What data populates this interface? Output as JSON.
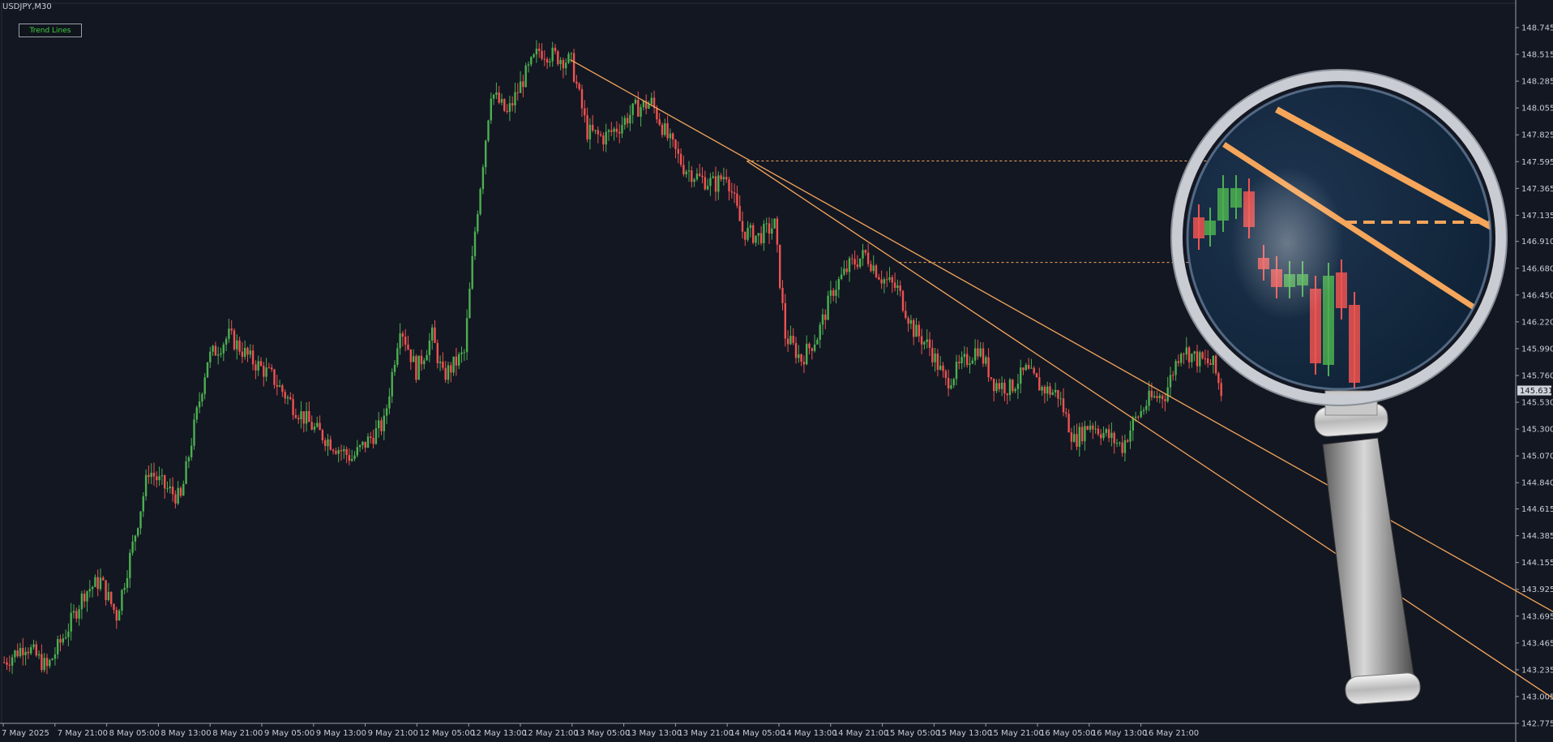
{
  "header": {
    "symbol": "USDJPY,M30"
  },
  "toolbar": {
    "trend_lines_label": "Trend Lines"
  },
  "colors": {
    "background": "#131722",
    "bull": "#4caf50",
    "bear": "#ef5350",
    "trend": "#f5a65b",
    "axis": "#9aa0a8"
  },
  "chart_data": {
    "type": "candlestick",
    "symbol": "USDJPY",
    "timeframe": "M30",
    "ylim": [
      142.775,
      148.745
    ],
    "current_price": "145.631",
    "y_ticks": [
      "148.745",
      "148.515",
      "148.285",
      "148.055",
      "147.825",
      "147.595",
      "147.365",
      "147.135",
      "146.910",
      "146.680",
      "146.450",
      "146.220",
      "145.990",
      "145.760",
      "145.530",
      "145.300",
      "145.070",
      "144.840",
      "144.615",
      "144.385",
      "144.155",
      "143.925",
      "143.695",
      "143.465",
      "143.235",
      "143.005",
      "142.775"
    ],
    "x_ticks": [
      "7 May 2025",
      "7 May 21:00",
      "8 May 05:00",
      "8 May 13:00",
      "8 May 21:00",
      "9 May 05:00",
      "9 May 13:00",
      "9 May 21:00",
      "12 May 05:00",
      "12 May 13:00",
      "12 May 21:00",
      "13 May 05:00",
      "13 May 13:00",
      "13 May 21:00",
      "14 May 05:00",
      "14 May 13:00",
      "14 May 21:00",
      "15 May 05:00",
      "15 May 13:00",
      "15 May 21:00",
      "16 May 05:00",
      "16 May 13:00",
      "16 May 21:00"
    ],
    "close_path": [
      [
        0,
        143.3
      ],
      [
        8,
        143.45
      ],
      [
        16,
        143.25
      ],
      [
        24,
        143.6
      ],
      [
        30,
        143.9
      ],
      [
        36,
        144.0
      ],
      [
        42,
        143.7
      ],
      [
        48,
        144.3
      ],
      [
        54,
        144.95
      ],
      [
        60,
        144.8
      ],
      [
        66,
        144.7
      ],
      [
        70,
        145.2
      ],
      [
        76,
        145.9
      ],
      [
        84,
        146.1
      ],
      [
        92,
        145.9
      ],
      [
        100,
        145.75
      ],
      [
        108,
        145.5
      ],
      [
        116,
        145.3
      ],
      [
        124,
        145.15
      ],
      [
        130,
        145.05
      ],
      [
        136,
        145.2
      ],
      [
        142,
        145.35
      ],
      [
        148,
        146.2
      ],
      [
        154,
        145.8
      ],
      [
        160,
        146.1
      ],
      [
        164,
        145.75
      ],
      [
        172,
        145.95
      ],
      [
        176,
        147.0
      ],
      [
        182,
        148.2
      ],
      [
        188,
        148.0
      ],
      [
        194,
        148.3
      ],
      [
        200,
        148.55
      ],
      [
        206,
        148.5
      ],
      [
        212,
        148.45
      ],
      [
        218,
        147.85
      ],
      [
        224,
        147.8
      ],
      [
        230,
        147.9
      ],
      [
        236,
        148.05
      ],
      [
        242,
        148.1
      ],
      [
        248,
        147.8
      ],
      [
        254,
        147.55
      ],
      [
        260,
        147.45
      ],
      [
        266,
        147.4
      ],
      [
        270,
        147.5
      ],
      [
        276,
        147.0
      ],
      [
        282,
        146.95
      ],
      [
        288,
        147.05
      ],
      [
        292,
        146.1
      ],
      [
        298,
        145.9
      ],
      [
        304,
        146.1
      ],
      [
        310,
        146.5
      ],
      [
        316,
        146.7
      ],
      [
        322,
        146.8
      ],
      [
        328,
        146.6
      ],
      [
        334,
        146.5
      ],
      [
        340,
        146.15
      ],
      [
        346,
        146.0
      ],
      [
        352,
        145.7
      ],
      [
        358,
        145.85
      ],
      [
        364,
        146.0
      ],
      [
        370,
        145.7
      ],
      [
        376,
        145.65
      ],
      [
        382,
        145.8
      ],
      [
        388,
        145.65
      ],
      [
        394,
        145.6
      ],
      [
        400,
        145.2
      ],
      [
        406,
        145.35
      ],
      [
        412,
        145.25
      ],
      [
        418,
        145.15
      ],
      [
        422,
        145.35
      ],
      [
        428,
        145.55
      ],
      [
        434,
        145.6
      ],
      [
        440,
        146.0
      ],
      [
        446,
        145.9
      ],
      [
        452,
        145.85
      ],
      [
        455,
        145.62
      ]
    ],
    "trend_lines": [
      {
        "from": [
          212,
          148.47
        ],
        "to": [
          582,
          143.7
        ]
      },
      {
        "from": [
          278,
          147.6
        ],
        "to": [
          582,
          142.95
        ]
      }
    ],
    "horizontal_levels": [
      {
        "price": 147.6,
        "from": 278,
        "to": 452
      },
      {
        "price": 146.73,
        "from": 335,
        "to": 452
      }
    ]
  }
}
